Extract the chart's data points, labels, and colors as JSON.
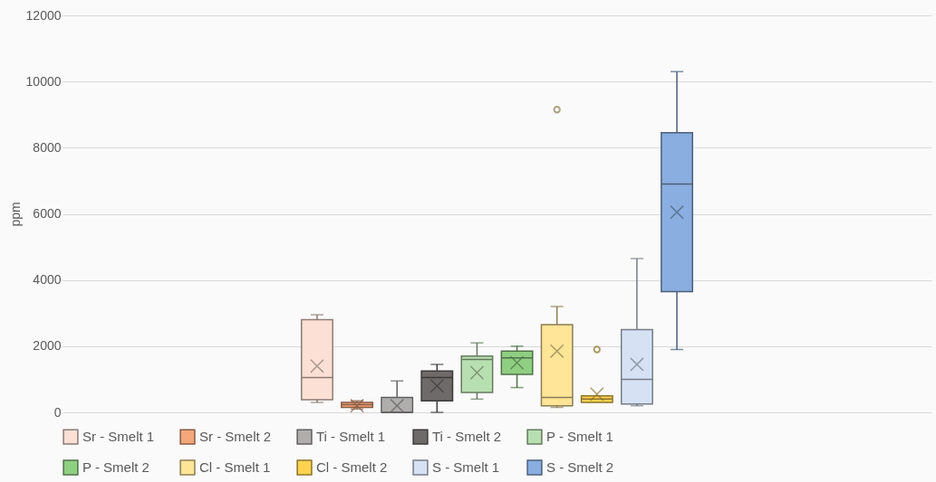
{
  "chart_data": {
    "type": "box",
    "ylabel": "ppm",
    "categories": [
      null
    ],
    "ylim": [
      0,
      12000
    ],
    "yticks": [
      0,
      2000,
      4000,
      6000,
      8000,
      10000,
      12000
    ],
    "grid": "y",
    "legend": "bottom",
    "tick_labels": "y",
    "series": [
      {
        "name": "Sr - Smelt 1",
        "color": "#fde0d5",
        "boxes": [
          {
            "low": 300,
            "q1": 380,
            "median": 1050,
            "q3": 2800,
            "high": 2950,
            "mean": 1400
          }
        ]
      },
      {
        "name": "Sr - Smelt 2",
        "color": "#f4a77a",
        "boxes": [
          {
            "low": 100,
            "q1": 150,
            "median": 230,
            "q3": 300,
            "high": 350,
            "mean": 200
          }
        ]
      },
      {
        "name": "Ti - Smelt 1",
        "color": "#b0adad",
        "boxes": [
          {
            "low": 0,
            "q1": 0,
            "median": 0,
            "q3": 450,
            "high": 950,
            "mean": 200
          }
        ]
      },
      {
        "name": "Ti - Smelt 2",
        "color": "#6e6a6a",
        "boxes": [
          {
            "low": 0,
            "q1": 350,
            "median": 1050,
            "q3": 1250,
            "high": 1450,
            "mean": 800
          }
        ]
      },
      {
        "name": "P - Smelt 1",
        "color": "#b8dfb0",
        "boxes": [
          {
            "low": 400,
            "q1": 600,
            "median": 1600,
            "q3": 1700,
            "high": 2100,
            "mean": 1200
          }
        ]
      },
      {
        "name": "P - Smelt 2",
        "color": "#8fcf82",
        "boxes": [
          {
            "low": 750,
            "q1": 1150,
            "median": 1650,
            "q3": 1850,
            "high": 2000,
            "mean": 1500
          }
        ]
      },
      {
        "name": "Cl - Smelt 1",
        "color": "#ffe597",
        "boxes": [
          {
            "low": 150,
            "q1": 200,
            "median": 450,
            "q3": 2650,
            "high": 3200,
            "mean": 1850,
            "outliers": [
              9150
            ]
          }
        ]
      },
      {
        "name": "Cl - Smelt 2",
        "color": "#ffd34f",
        "boxes": [
          {
            "low": 300,
            "q1": 300,
            "median": 400,
            "q3": 500,
            "high": 500,
            "mean": 550,
            "outliers": [
              1900
            ]
          }
        ]
      },
      {
        "name": "S - Smelt 1",
        "color": "#d6e2f4",
        "boxes": [
          {
            "low": 200,
            "q1": 250,
            "median": 1000,
            "q3": 2500,
            "high": 4650,
            "mean": 1450
          }
        ]
      },
      {
        "name": "S - Smelt 2",
        "color": "#8aaee0",
        "boxes": [
          {
            "low": 1900,
            "q1": 3650,
            "median": 6900,
            "q3": 8450,
            "high": 10300,
            "mean": 6050
          }
        ]
      }
    ]
  }
}
